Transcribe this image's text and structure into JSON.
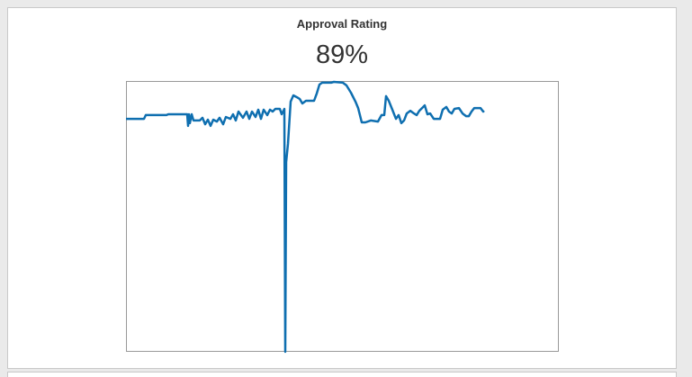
{
  "chart_data": {
    "type": "line",
    "title": "Approval Rating",
    "headline": "89%",
    "color": "#0f6fb0",
    "x": [
      0,
      20,
      22,
      45,
      47,
      68,
      69,
      70,
      71,
      73,
      75,
      82,
      85,
      88,
      91,
      94,
      97,
      101,
      104,
      108,
      111,
      116,
      119,
      122,
      125,
      130,
      134,
      137,
      140,
      144,
      147,
      150,
      153,
      157,
      160,
      163,
      166,
      171,
      173,
      176,
      177,
      178,
      180,
      183,
      186,
      190,
      193,
      196,
      200,
      205,
      209,
      212,
      215,
      218,
      228,
      231,
      241,
      245,
      250,
      255,
      258,
      262,
      266,
      272,
      280,
      284,
      287,
      289,
      292,
      296,
      300,
      303,
      306,
      309,
      312,
      316,
      320,
      323,
      326,
      329,
      332,
      335,
      338,
      342,
      349,
      352,
      356,
      359,
      362,
      365,
      370,
      374,
      378,
      381,
      384,
      387,
      394,
      397,
      398
    ],
    "values": [
      86.3,
      86.3,
      87.7,
      87.7,
      88,
      88,
      83.7,
      88,
      84.7,
      88,
      85.7,
      85.7,
      86.7,
      84.3,
      86,
      83.7,
      86,
      85.3,
      86.7,
      84.3,
      87,
      86.3,
      88,
      85.7,
      89,
      86.7,
      89,
      86.3,
      89,
      87,
      89.7,
      86.3,
      89.7,
      87.7,
      89.7,
      89,
      90,
      90,
      88,
      90,
      0,
      70.3,
      77,
      92.7,
      95,
      94.3,
      93.7,
      92,
      93,
      93,
      93,
      95.7,
      99,
      99.7,
      99.7,
      100,
      99.7,
      98.7,
      96,
      92.7,
      90.3,
      85,
      85,
      85.7,
      85.3,
      87.7,
      87.7,
      94.7,
      93,
      89.7,
      86.3,
      87.7,
      84.7,
      85.7,
      88.3,
      89.3,
      88.3,
      87.7,
      89.3,
      90.3,
      91.3,
      88,
      88.3,
      86.3,
      86.3,
      89.7,
      90.7,
      89,
      88.3,
      90,
      90.3,
      88.3,
      87.3,
      87.3,
      89,
      90.3,
      90.3,
      89,
      89.3
    ],
    "xlim": [
      0,
      481
    ],
    "ylim": [
      0,
      100
    ]
  }
}
